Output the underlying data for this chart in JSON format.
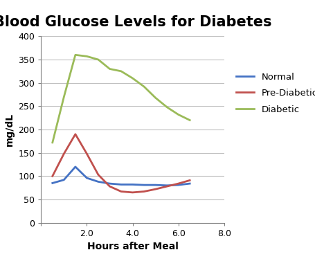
{
  "title": "Blood Glucose Levels for Diabetes",
  "xlabel": "Hours after Meal",
  "ylabel": "mg/dL",
  "xlim": [
    0,
    8
  ],
  "ylim": [
    0,
    400
  ],
  "xticks": [
    0,
    2.0,
    4.0,
    6.0,
    8.0
  ],
  "xtick_labels": [
    "",
    "2.0",
    "4.0",
    "6.0",
    "8.0"
  ],
  "yticks": [
    0,
    50,
    100,
    150,
    200,
    250,
    300,
    350,
    400
  ],
  "normal": {
    "x": [
      0.5,
      1.0,
      1.5,
      2.0,
      2.5,
      3.0,
      3.5,
      4.0,
      4.5,
      5.0,
      5.5,
      6.0,
      6.5
    ],
    "y": [
      85,
      92,
      120,
      96,
      88,
      84,
      82,
      82,
      81,
      81,
      80,
      81,
      84
    ],
    "color": "#4472C4",
    "label": "Normal"
  },
  "prediabetic": {
    "x": [
      0.5,
      1.0,
      1.5,
      2.0,
      2.5,
      3.0,
      3.5,
      4.0,
      4.5,
      5.0,
      5.5,
      6.0,
      6.5
    ],
    "y": [
      100,
      148,
      190,
      148,
      103,
      78,
      67,
      65,
      67,
      72,
      78,
      84,
      91
    ],
    "color": "#C0504D",
    "label": "Pre-Diabetic"
  },
  "diabetic": {
    "x": [
      0.5,
      1.0,
      1.5,
      2.0,
      2.5,
      3.0,
      3.5,
      4.0,
      4.5,
      5.0,
      5.5,
      6.0,
      6.5
    ],
    "y": [
      172,
      270,
      360,
      357,
      350,
      330,
      325,
      310,
      292,
      268,
      248,
      232,
      220
    ],
    "color": "#9BBB59",
    "label": "Diabetic"
  },
  "title_fontsize": 15,
  "axis_label_fontsize": 10,
  "tick_fontsize": 9,
  "legend_fontsize": 9.5,
  "line_width": 2.0,
  "background_color": "#FFFFFF",
  "grid_color": "#C0C0C0"
}
